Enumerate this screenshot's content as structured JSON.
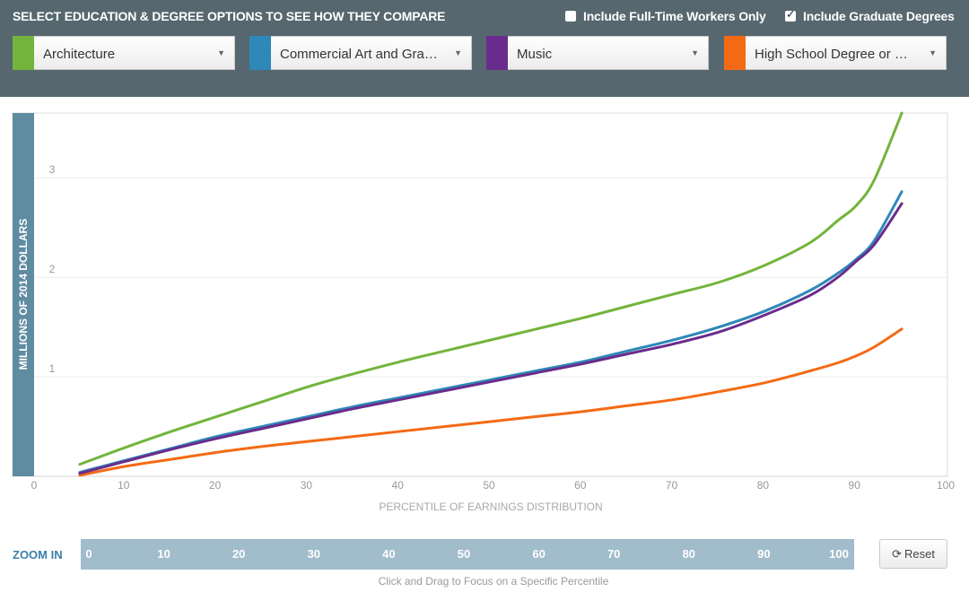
{
  "header": {
    "title": "SELECT EDUCATION & DEGREE OPTIONS TO SEE HOW THEY COMPARE",
    "option_fulltime": {
      "label": "Include Full-Time Workers Only",
      "checked": false
    },
    "option_graduate": {
      "label": "Include Graduate Degrees",
      "checked": true
    },
    "selects": [
      {
        "label": "Architecture",
        "color": "#73b43c"
      },
      {
        "label": "Commercial Art and Gra…",
        "color": "#2e88b8"
      },
      {
        "label": "Music",
        "color": "#6a2c8c"
      },
      {
        "label": "High School Degree or …",
        "color": "#f46a14"
      }
    ]
  },
  "zoom": {
    "label": "ZOOM IN",
    "ticks": [
      "0",
      "10",
      "20",
      "30",
      "40",
      "50",
      "60",
      "70",
      "80",
      "90",
      "100"
    ],
    "reset_label": "Reset",
    "hint": "Click and Drag to Focus on a Specific Percentile"
  },
  "chart_data": {
    "type": "line",
    "xlabel": "PERCENTILE OF EARNINGS DISTRIBUTION",
    "ylabel": "MILLIONS OF 2014 DOLLARS",
    "xlim": [
      0,
      100
    ],
    "ylim": [
      0,
      3.65
    ],
    "x_ticks": [
      "0",
      "10",
      "20",
      "30",
      "40",
      "50",
      "60",
      "70",
      "80",
      "90",
      "100"
    ],
    "y_ticks": [
      "1",
      "2",
      "3"
    ],
    "grid": true,
    "x": [
      5,
      10,
      15,
      20,
      25,
      30,
      35,
      40,
      45,
      50,
      55,
      60,
      65,
      70,
      75,
      80,
      85,
      88,
      90,
      92,
      95
    ],
    "series": [
      {
        "name": "Architecture",
        "color": "#73b43c",
        "values": [
          0.12,
          0.29,
          0.45,
          0.6,
          0.75,
          0.9,
          1.03,
          1.15,
          1.26,
          1.37,
          1.48,
          1.59,
          1.71,
          1.83,
          1.95,
          2.12,
          2.35,
          2.57,
          2.72,
          2.98,
          3.65
        ]
      },
      {
        "name": "Commercial Art and Gra…",
        "color": "#2e88b8",
        "values": [
          0.04,
          0.16,
          0.28,
          0.4,
          0.5,
          0.6,
          0.7,
          0.79,
          0.88,
          0.97,
          1.06,
          1.15,
          1.26,
          1.37,
          1.5,
          1.66,
          1.87,
          2.04,
          2.18,
          2.37,
          2.86
        ]
      },
      {
        "name": "Music",
        "color": "#6a2c8c",
        "values": [
          0.03,
          0.15,
          0.27,
          0.38,
          0.48,
          0.58,
          0.68,
          0.77,
          0.86,
          0.95,
          1.04,
          1.13,
          1.23,
          1.33,
          1.45,
          1.62,
          1.82,
          2.0,
          2.16,
          2.33,
          2.74
        ]
      },
      {
        "name": "High School Degree or …",
        "color": "#f46a14",
        "values": [
          0.01,
          0.1,
          0.17,
          0.24,
          0.3,
          0.35,
          0.4,
          0.45,
          0.5,
          0.55,
          0.6,
          0.65,
          0.71,
          0.77,
          0.85,
          0.94,
          1.06,
          1.14,
          1.21,
          1.3,
          1.48
        ]
      }
    ]
  }
}
